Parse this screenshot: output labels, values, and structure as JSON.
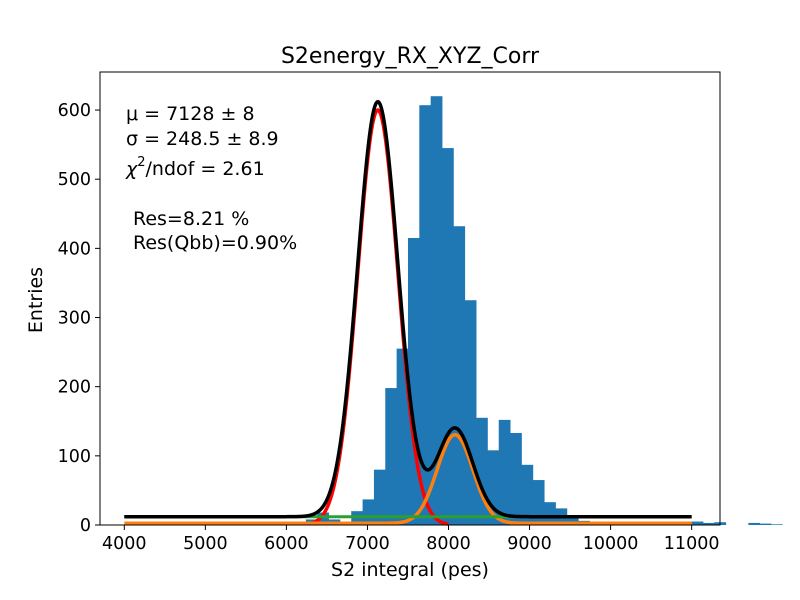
{
  "chart_data": {
    "type": "bar",
    "title": "S2energy_RX_XYZ_Corr",
    "xlabel": "S2 integral (pes)",
    "ylabel": "Entries",
    "xlim": [
      3700,
      11350
    ],
    "ylim": [
      0,
      655
    ],
    "xticks": [
      4000,
      5000,
      6000,
      7000,
      8000,
      9000,
      10000,
      11000
    ],
    "yticks": [
      0,
      100,
      200,
      300,
      400,
      500,
      600
    ],
    "grid": false,
    "histogram": {
      "color": "#1f77b4",
      "bin_width": 140,
      "x_start": 4000,
      "values": [
        0,
        0,
        0,
        0,
        1,
        2,
        2,
        4,
        0,
        0,
        0,
        1,
        3,
        4,
        5,
        4,
        8,
        18,
        8,
        4,
        20,
        37,
        80,
        198,
        255,
        415,
        607,
        620,
        545,
        432,
        325,
        155,
        108,
        152,
        133,
        87,
        65,
        33,
        24,
        10,
        6,
        0,
        0,
        0,
        0,
        5,
        3,
        2,
        0,
        0,
        5,
        3,
        4,
        0,
        0,
        3,
        2,
        1,
        0,
        0
      ]
    },
    "fit": {
      "mu": 7128,
      "sigma": 248.5,
      "amp1": 600,
      "mu2": 8080,
      "sigma2": 220,
      "amp2": 128,
      "background": 12,
      "orange_background": 2.5
    },
    "series": [
      {
        "color": "#ff0000"
      },
      {
        "color": "#ff7f0e"
      },
      {
        "color": "#2ca02c"
      },
      {
        "color": "#000000"
      }
    ],
    "annotations": {
      "mu_line": "μ = 7128 ± 8",
      "sigma_line": "σ = 248.5 ± 8.9",
      "chi2_symbol": "χ",
      "chi2_superscript": "2",
      "chi2_rest": "/ndof = 2.61",
      "res": "Res=8.21 %",
      "res_qbb": "Res(Qbb)=0.90%"
    }
  }
}
